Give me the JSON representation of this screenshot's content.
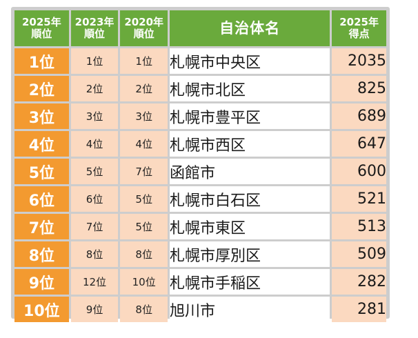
{
  "header": {
    "rank_2025_line1": "2025年",
    "rank_2025_line2": "順位",
    "rank_2023_line1": "2023年",
    "rank_2023_line2": "順位",
    "rank_2020_line1": "2020年",
    "rank_2020_line2": "順位",
    "municipality": "自治体名",
    "score_line1": "2025年",
    "score_line2": "得点"
  },
  "rows": [
    {
      "rank_2025": "1位",
      "rank_2023": "1位",
      "rank_2020": "1位",
      "name": "札幌市中央区",
      "score": "2035"
    },
    {
      "rank_2025": "2位",
      "rank_2023": "2位",
      "rank_2020": "2位",
      "name": "札幌市北区",
      "score": "825"
    },
    {
      "rank_2025": "3位",
      "rank_2023": "3位",
      "rank_2020": "3位",
      "name": "札幌市豊平区",
      "score": "689"
    },
    {
      "rank_2025": "4位",
      "rank_2023": "4位",
      "rank_2020": "4位",
      "name": "札幌市西区",
      "score": "647"
    },
    {
      "rank_2025": "5位",
      "rank_2023": "5位",
      "rank_2020": "7位",
      "name": "函館市",
      "score": "600"
    },
    {
      "rank_2025": "6位",
      "rank_2023": "6位",
      "rank_2020": "5位",
      "name": "札幌市白石区",
      "score": "521"
    },
    {
      "rank_2025": "7位",
      "rank_2023": "7位",
      "rank_2020": "5位",
      "name": "札幌市東区",
      "score": "513"
    },
    {
      "rank_2025": "8位",
      "rank_2023": "8位",
      "rank_2020": "8位",
      "name": "札幌市厚別区",
      "score": "509"
    },
    {
      "rank_2025": "9位",
      "rank_2023": "12位",
      "rank_2020": "10位",
      "name": "札幌市手稲区",
      "score": "282"
    },
    {
      "rank_2025": "10位",
      "rank_2023": "9位",
      "rank_2020": "8位",
      "name": "旭川市",
      "score": "281"
    }
  ],
  "colors": {
    "header_green": "#6aaa3c",
    "rank_orange": "#f39a30",
    "cell_peach": "#fbd9c0",
    "border_gray": "#cdcdcd"
  }
}
